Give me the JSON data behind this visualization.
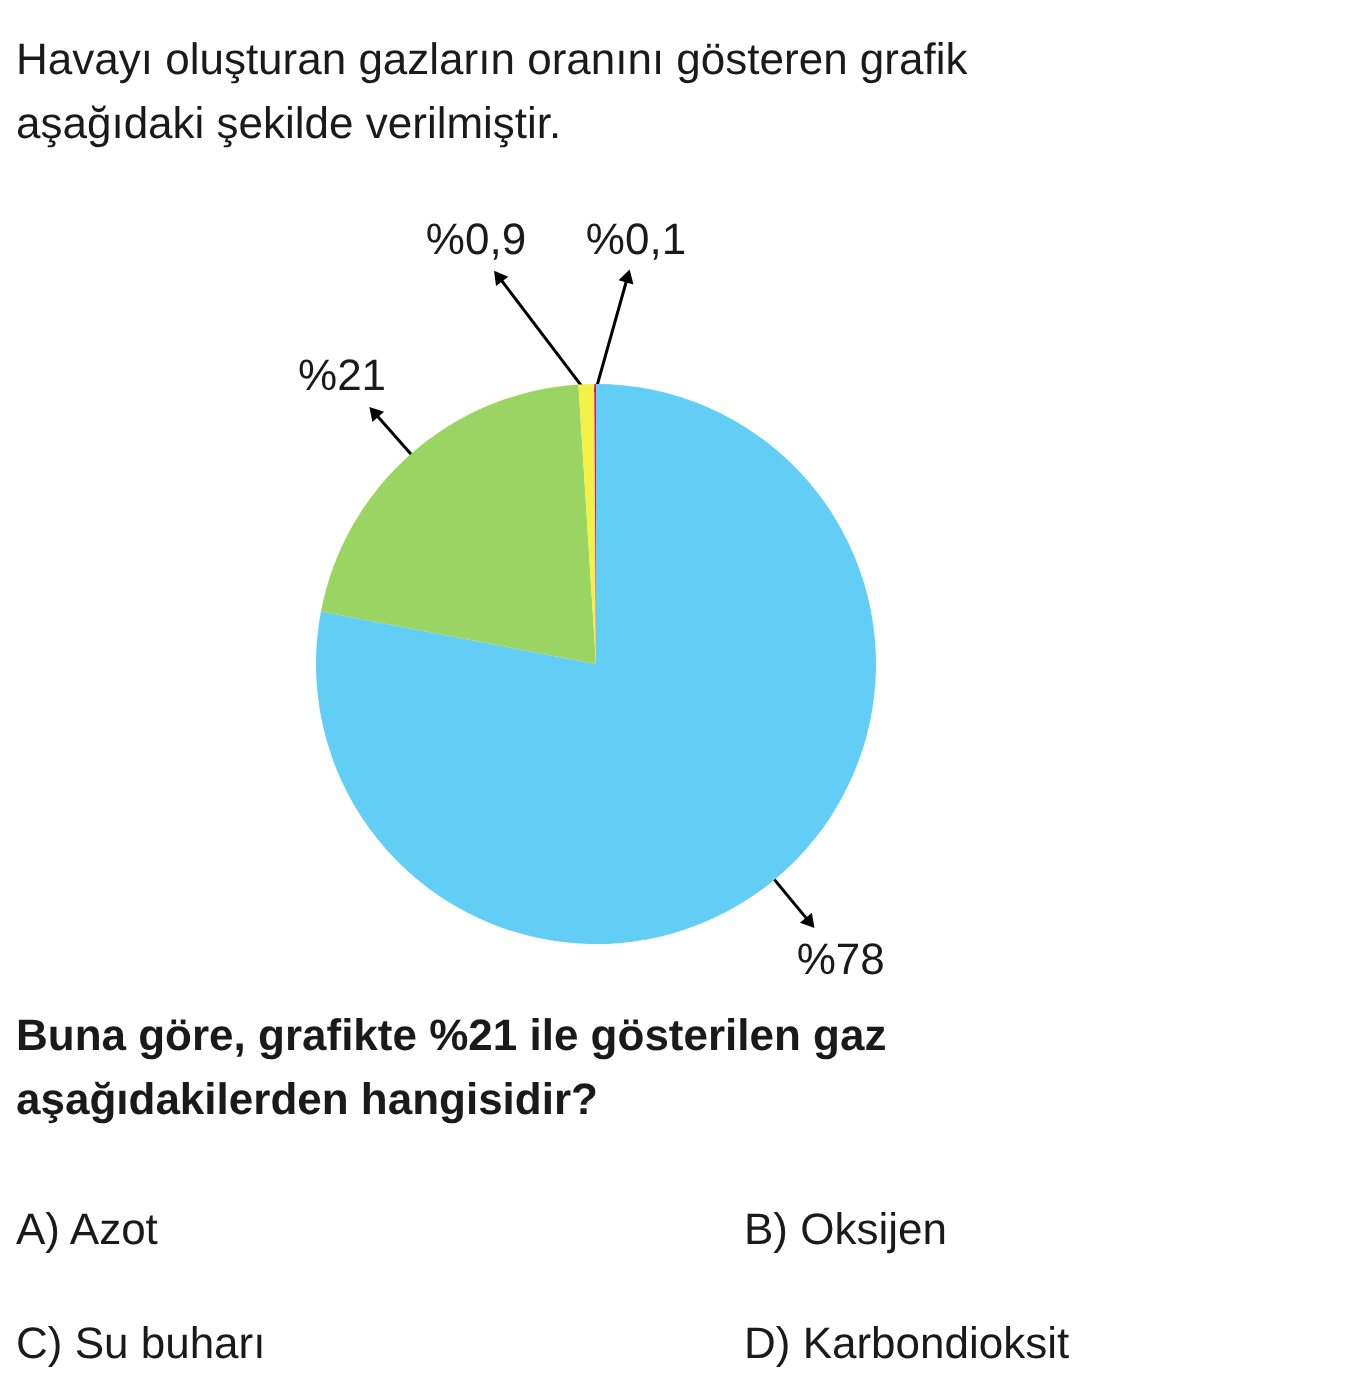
{
  "chart_data": {
    "type": "pie",
    "title": "Havayı oluşturan gazların oranını gösteren grafik aşağıdaki şekilde verilmiştir.",
    "categories": [
      null,
      null,
      null,
      null
    ],
    "values": [
      78,
      21,
      0.9,
      0.1
    ],
    "colors": [
      "#62cdf5",
      "#9ad462",
      "#f5f046",
      "#d6157a"
    ],
    "value_labels": [
      "%78",
      "%21",
      "%0,9",
      "%0,1"
    ],
    "annotations": [
      "Buna göre, grafikte %21 ile gösterilen gaz aşağıdakilerden hangisidir?",
      "A) Azot",
      "B) Oksijen",
      "C) Su buharı",
      "D) Karbondioksit"
    ]
  }
}
